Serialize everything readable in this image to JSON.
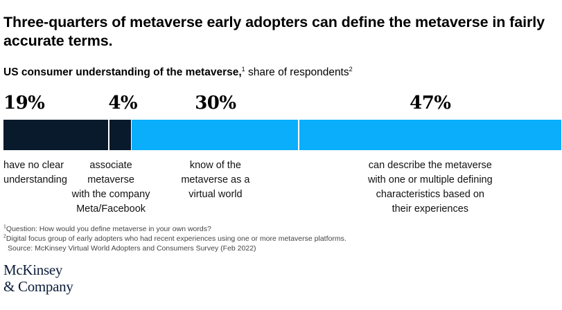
{
  "title": "Three-quarters of metaverse early adopters can define the metaverse in fairly accurate terms.",
  "subtitle": {
    "bold": "US consumer understanding of the metaverse,",
    "bold_sup": "1",
    "rest": " share of respondents",
    "rest_sup": "2"
  },
  "colors": {
    "dark": "#081a2b",
    "accent": "#0aaefb",
    "divider": "#ffffff"
  },
  "chart_data": {
    "type": "bar",
    "orientation": "horizontal-stacked",
    "title": "US consumer understanding of the metaverse, share of respondents",
    "categories": [
      "have no clear understanding",
      "associate metaverse with the company Meta/Facebook",
      "know of the metaverse as a virtual world",
      "can describe the metaverse with one or multiple defining characteristics based on their experiences"
    ],
    "values": [
      19,
      4,
      30,
      47
    ],
    "value_labels": [
      "19%",
      "4%",
      "30%",
      "47%"
    ],
    "label_lines": [
      [
        "have no clear",
        "understanding"
      ],
      [
        "associate",
        "metaverse",
        "with the company",
        "Meta/Facebook"
      ],
      [
        "know of the",
        "metaverse as a",
        "virtual world"
      ],
      [
        "can describe the metaverse",
        "with one or multiple defining",
        "characteristics based on",
        "their experiences"
      ]
    ],
    "segment_colors": [
      "#081a2b",
      "#081a2b",
      "#0aaefb",
      "#0aaefb"
    ],
    "xlim": [
      0,
      100
    ]
  },
  "footnotes": [
    {
      "sup": "1",
      "text": "Question: How would you define metaverse in your own words?"
    },
    {
      "sup": "2",
      "text": "Digital focus group of early adopters who had recent experiences using one or more metaverse platforms."
    }
  ],
  "source": "Source: McKinsey Virtual World Adopters and Consumers Survey (Feb 2022)",
  "logo": {
    "line1": "McKinsey",
    "line2": "& Company"
  }
}
